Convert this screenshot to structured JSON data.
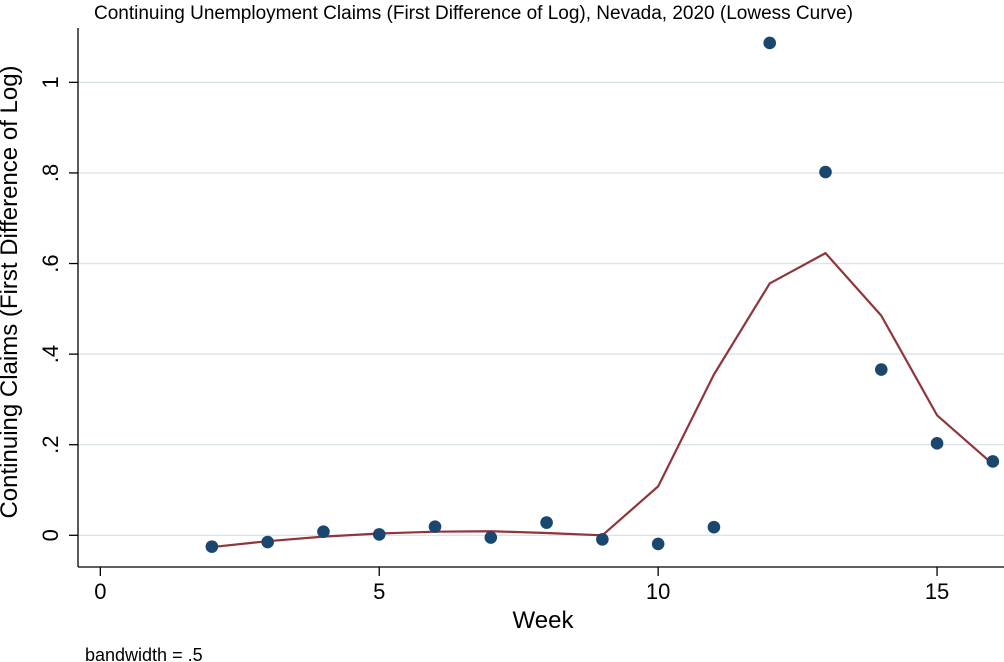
{
  "chart_data": {
    "type": "scatter",
    "title": "Continuing Unemployment Claims (First Difference of Log), Nevada, 2020 (Lowess Curve)",
    "xlabel": "Week",
    "ylabel": "Continuing Claims (First Difference of Log)",
    "note": "bandwidth = .5",
    "xlim": [
      -0.4,
      16.2
    ],
    "ylim": [
      -0.07,
      1.12
    ],
    "xticks": [
      0,
      5,
      10,
      15
    ],
    "xtick_labels": [
      "0",
      "5",
      "10",
      "15"
    ],
    "yticks": [
      0,
      0.2,
      0.4,
      0.6,
      0.8,
      1
    ],
    "ytick_labels": [
      "0",
      ".2",
      ".4",
      ".6",
      ".8",
      "1"
    ],
    "grid": true,
    "series": [
      {
        "kind": "scatter",
        "color": "#1a476f",
        "x": [
          2,
          3,
          4,
          5,
          6,
          7,
          8,
          9,
          10,
          11,
          12,
          13,
          14,
          15,
          16
        ],
        "y": [
          -0.025,
          -0.015,
          0.008,
          0.002,
          0.019,
          -0.005,
          0.028,
          -0.009,
          -0.019,
          0.018,
          1.087,
          0.802,
          0.366,
          0.203,
          0.163
        ]
      },
      {
        "kind": "line",
        "color": "#90353b",
        "x": [
          2,
          3,
          4,
          5,
          6,
          7,
          8,
          9,
          10,
          11,
          12,
          13,
          14,
          15,
          16
        ],
        "y": [
          -0.026,
          -0.013,
          -0.003,
          0.004,
          0.008,
          0.009,
          0.005,
          0.0,
          0.108,
          0.355,
          0.556,
          0.623,
          0.485,
          0.265,
          0.157
        ]
      }
    ]
  }
}
